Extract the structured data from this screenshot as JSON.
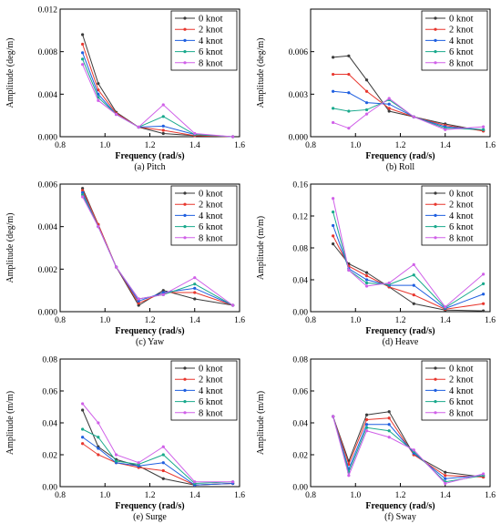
{
  "series_colors": [
    "#3a3a3a",
    "#e8372e",
    "#1f5fe0",
    "#19a98c",
    "#d060e8"
  ],
  "chart_data": [
    {
      "type": "line",
      "caption": "(a) Pitch",
      "xlabel": "Frequency (rad/s)",
      "ylabel": "Amplitude (deg/m)",
      "xlim": [
        0.8,
        1.6
      ],
      "ylim": [
        0,
        0.012
      ],
      "xticks": [
        "0.8",
        "1.0",
        "1.2",
        "1.4",
        "1.6"
      ],
      "yticks": [
        "0.000",
        "0.004",
        "0.008",
        "0.012"
      ],
      "legend_position": "top-right",
      "x": [
        0.9,
        0.97,
        1.05,
        1.15,
        1.26,
        1.4,
        1.57
      ],
      "series": [
        {
          "name": "0 knot",
          "values": [
            0.0096,
            0.005,
            0.0023,
            0.0009,
            0.0003,
            0.0001,
            0.0
          ]
        },
        {
          "name": "2 knot",
          "values": [
            0.0087,
            0.0044,
            0.0022,
            0.0009,
            0.0006,
            0.0001,
            0.0
          ]
        },
        {
          "name": "4 knot",
          "values": [
            0.0079,
            0.004,
            0.0021,
            0.0009,
            0.001,
            0.0002,
            0.0
          ]
        },
        {
          "name": "6 knot",
          "values": [
            0.0073,
            0.0037,
            0.0021,
            0.0009,
            0.0019,
            0.0002,
            0.0
          ]
        },
        {
          "name": "8 knot",
          "values": [
            0.0068,
            0.0034,
            0.0021,
            0.0009,
            0.003,
            0.0003,
            0.0
          ]
        }
      ]
    },
    {
      "type": "line",
      "caption": "(b) Roll",
      "xlabel": "Frequency (rad/s)",
      "ylabel": "Amplitude (deg/m)",
      "xlim": [
        0.8,
        1.6
      ],
      "ylim": [
        0,
        0.009
      ],
      "xticks": [
        "0.8",
        "1.0",
        "1.2",
        "1.4",
        "1.6"
      ],
      "yticks": [
        "0.000",
        "0.003",
        "0.006"
      ],
      "legend_position": "top-right",
      "x": [
        0.9,
        0.97,
        1.05,
        1.15,
        1.26,
        1.4,
        1.57
      ],
      "series": [
        {
          "name": "0 knot",
          "values": [
            0.0056,
            0.0057,
            0.004,
            0.0018,
            0.0014,
            0.0009,
            0.0004
          ]
        },
        {
          "name": "2 knot",
          "values": [
            0.0044,
            0.0044,
            0.0032,
            0.002,
            0.0014,
            0.0008,
            0.0004
          ]
        },
        {
          "name": "4 knot",
          "values": [
            0.0032,
            0.0031,
            0.0024,
            0.0023,
            0.0014,
            0.0007,
            0.0005
          ]
        },
        {
          "name": "6 knot",
          "values": [
            0.002,
            0.0018,
            0.0019,
            0.0026,
            0.0014,
            0.0006,
            0.0005
          ]
        },
        {
          "name": "8 knot",
          "values": [
            0.001,
            0.0006,
            0.0016,
            0.0027,
            0.0014,
            0.0005,
            0.0007
          ]
        }
      ]
    },
    {
      "type": "line",
      "caption": "(c) Yaw",
      "xlabel": "Frequency (rad/s)",
      "ylabel": "Amplitude (deg/m)",
      "xlim": [
        0.8,
        1.6
      ],
      "ylim": [
        0,
        0.006
      ],
      "xticks": [
        "0.8",
        "1.0",
        "1.2",
        "1.4",
        "1.6"
      ],
      "yticks": [
        "0.000",
        "0.002",
        "0.004",
        "0.006"
      ],
      "legend_position": "top-right",
      "x": [
        0.9,
        0.97,
        1.05,
        1.15,
        1.26,
        1.4,
        1.57
      ],
      "series": [
        {
          "name": "0 knot",
          "values": [
            0.0058,
            0.0041,
            0.0021,
            0.0003,
            0.001,
            0.0006,
            0.0003
          ]
        },
        {
          "name": "2 knot",
          "values": [
            0.0057,
            0.0041,
            0.0021,
            0.0004,
            0.0009,
            0.0009,
            0.0003
          ]
        },
        {
          "name": "4 knot",
          "values": [
            0.0056,
            0.004,
            0.0021,
            0.0005,
            0.0009,
            0.0011,
            0.0003
          ]
        },
        {
          "name": "6 knot",
          "values": [
            0.0055,
            0.004,
            0.0021,
            0.0006,
            0.0008,
            0.0013,
            0.0003
          ]
        },
        {
          "name": "8 knot",
          "values": [
            0.0054,
            0.004,
            0.0021,
            0.0006,
            0.0008,
            0.0016,
            0.0003
          ]
        }
      ]
    },
    {
      "type": "line",
      "caption": "(d) Heave",
      "xlabel": "Frequency (rad/s)",
      "ylabel": "Amplitude (m/m)",
      "xlim": [
        0.8,
        1.6
      ],
      "ylim": [
        0,
        0.16
      ],
      "xticks": [
        "0.8",
        "1.0",
        "1.2",
        "1.4",
        "1.6"
      ],
      "yticks": [
        "0.00",
        "0.04",
        "0.08",
        "0.12",
        "0.16"
      ],
      "legend_position": "top-right",
      "x": [
        0.9,
        0.97,
        1.05,
        1.15,
        1.26,
        1.4,
        1.57
      ],
      "series": [
        {
          "name": "0 knot",
          "values": [
            0.085,
            0.06,
            0.049,
            0.031,
            0.01,
            0.002,
            0.001
          ]
        },
        {
          "name": "2 knot",
          "values": [
            0.095,
            0.057,
            0.045,
            0.031,
            0.021,
            0.003,
            0.01
          ]
        },
        {
          "name": "4 knot",
          "values": [
            0.108,
            0.054,
            0.04,
            0.033,
            0.033,
            0.004,
            0.022
          ]
        },
        {
          "name": "6 knot",
          "values": [
            0.125,
            0.052,
            0.036,
            0.034,
            0.046,
            0.005,
            0.035
          ]
        },
        {
          "name": "8 knot",
          "values": [
            0.142,
            0.052,
            0.032,
            0.036,
            0.059,
            0.006,
            0.047
          ]
        }
      ]
    },
    {
      "type": "line",
      "caption": "(e) Surge",
      "xlabel": "Frequency (rad/s)",
      "ylabel": "Amplitude (m/m)",
      "xlim": [
        0.8,
        1.6
      ],
      "ylim": [
        0,
        0.08
      ],
      "xticks": [
        "0.8",
        "1.0",
        "1.2",
        "1.4",
        "1.6"
      ],
      "yticks": [
        "0.00",
        "0.02",
        "0.04",
        "0.06",
        "0.08"
      ],
      "legend_position": "top-right",
      "x": [
        0.9,
        0.97,
        1.05,
        1.15,
        1.26,
        1.4,
        1.57
      ],
      "series": [
        {
          "name": "0 knot",
          "values": [
            0.048,
            0.025,
            0.017,
            0.013,
            0.005,
            0.001,
            0.002
          ]
        },
        {
          "name": "2 knot",
          "values": [
            0.027,
            0.02,
            0.015,
            0.012,
            0.01,
            0.001,
            0.002
          ]
        },
        {
          "name": "4 knot",
          "values": [
            0.031,
            0.024,
            0.015,
            0.013,
            0.015,
            0.001,
            0.002
          ]
        },
        {
          "name": "6 knot",
          "values": [
            0.036,
            0.031,
            0.016,
            0.014,
            0.02,
            0.002,
            0.003
          ]
        },
        {
          "name": "8 knot",
          "values": [
            0.052,
            0.04,
            0.02,
            0.015,
            0.025,
            0.003,
            0.003
          ]
        }
      ]
    },
    {
      "type": "line",
      "caption": "(f) Sway",
      "xlabel": "Frequency (rad/s)",
      "ylabel": "Amplitude (m/m)",
      "xlim": [
        0.8,
        1.6
      ],
      "ylim": [
        0,
        0.08
      ],
      "xticks": [
        "0.8",
        "1.0",
        "1.2",
        "1.4",
        "1.6"
      ],
      "yticks": [
        "0.00",
        "0.02",
        "0.04",
        "0.06",
        "0.08"
      ],
      "legend_position": "top-right",
      "x": [
        0.9,
        0.97,
        1.05,
        1.15,
        1.26,
        1.4,
        1.57
      ],
      "series": [
        {
          "name": "0 knot",
          "values": [
            0.044,
            0.016,
            0.045,
            0.047,
            0.02,
            0.009,
            0.006
          ]
        },
        {
          "name": "2 knot",
          "values": [
            0.044,
            0.014,
            0.042,
            0.043,
            0.02,
            0.007,
            0.006
          ]
        },
        {
          "name": "4 knot",
          "values": [
            0.044,
            0.011,
            0.039,
            0.039,
            0.021,
            0.005,
            0.007
          ]
        },
        {
          "name": "6 knot",
          "values": [
            0.044,
            0.009,
            0.037,
            0.035,
            0.022,
            0.003,
            0.007
          ]
        },
        {
          "name": "8 knot",
          "values": [
            0.044,
            0.007,
            0.035,
            0.031,
            0.023,
            0.002,
            0.008
          ]
        }
      ]
    }
  ]
}
